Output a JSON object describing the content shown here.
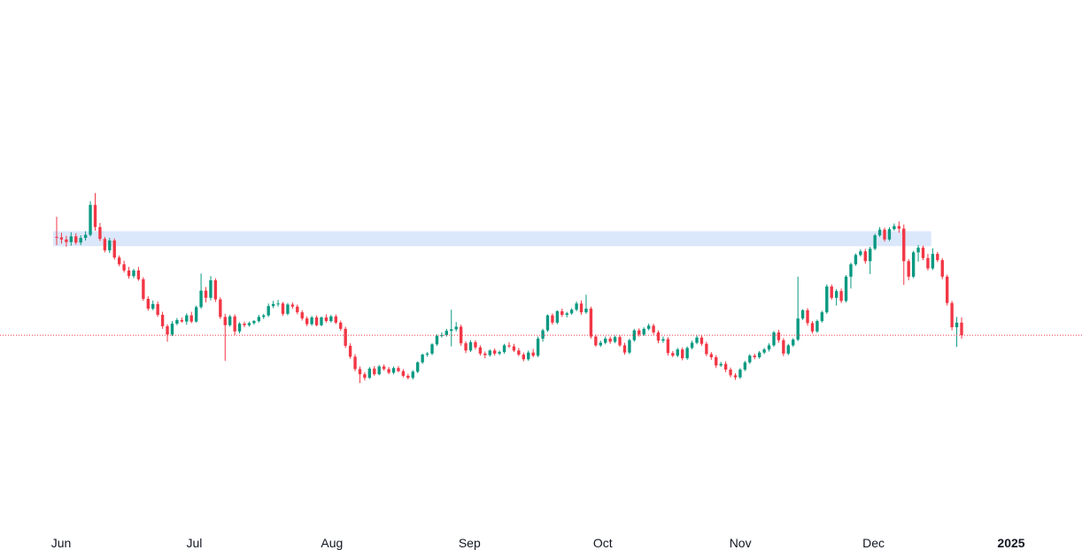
{
  "chart_data": {
    "type": "candlestick",
    "x_ticks": [
      {
        "label": "Jun",
        "date": "2024-06-01"
      },
      {
        "label": "Jul",
        "date": "2024-07-01"
      },
      {
        "label": "Aug",
        "date": "2024-08-01"
      },
      {
        "label": "Sep",
        "date": "2024-09-01"
      },
      {
        "label": "Oct",
        "date": "2024-10-01"
      },
      {
        "label": "Nov",
        "date": "2024-11-01"
      },
      {
        "label": "Dec",
        "date": "2024-12-01"
      },
      {
        "label": "2025",
        "date": "2025-01-01",
        "year": true
      }
    ],
    "xlim": [
      "2024-06-01",
      "2025-01-01"
    ],
    "ylim": [
      0,
      100
    ],
    "grid": false,
    "legend": "none",
    "up_color": "#089981",
    "down_color": "#f23645",
    "zone_color": "#dbe7fb",
    "current_price_line_color": "#f23645",
    "resistance_zone": {
      "from": "2024-06-01",
      "to": "2024-12-14",
      "low": 52.6,
      "high": 58.4
    },
    "current_price": 18.1,
    "candles_ohlc": [
      [
        56.2,
        64.0,
        53.0,
        56.0
      ],
      [
        56.0,
        57.8,
        53.6,
        55.2
      ],
      [
        55.2,
        56.6,
        52.4,
        54.2
      ],
      [
        54.2,
        58.0,
        52.8,
        56.4
      ],
      [
        56.4,
        57.6,
        53.2,
        54.0
      ],
      [
        54.0,
        56.8,
        53.0,
        55.8
      ],
      [
        55.8,
        58.4,
        54.8,
        57.0
      ],
      [
        57.0,
        70.0,
        56.4,
        68.6
      ],
      [
        68.6,
        73.2,
        58.6,
        60.0
      ],
      [
        60.0,
        61.6,
        54.6,
        55.4
      ],
      [
        55.4,
        56.2,
        50.2,
        51.0
      ],
      [
        51.0,
        55.8,
        50.0,
        54.8
      ],
      [
        54.8,
        55.6,
        47.4,
        48.2
      ],
      [
        48.2,
        49.0,
        44.8,
        45.6
      ],
      [
        45.6,
        47.0,
        42.4,
        43.2
      ],
      [
        43.2,
        44.6,
        40.0,
        41.0
      ],
      [
        41.0,
        43.8,
        40.2,
        43.2
      ],
      [
        43.2,
        44.6,
        39.2,
        39.8
      ],
      [
        39.8,
        40.6,
        31.4,
        32.2
      ],
      [
        32.2,
        33.2,
        27.6,
        28.4
      ],
      [
        28.4,
        31.6,
        27.8,
        30.2
      ],
      [
        30.2,
        31.2,
        25.2,
        26.0
      ],
      [
        26.0,
        27.2,
        20.6,
        21.6
      ],
      [
        21.6,
        22.4,
        15.6,
        18.4
      ],
      [
        18.4,
        23.6,
        17.8,
        22.6
      ],
      [
        22.6,
        24.8,
        22.0,
        24.0
      ],
      [
        24.0,
        25.0,
        23.0,
        23.4
      ],
      [
        23.4,
        26.6,
        22.2,
        25.8
      ],
      [
        25.8,
        27.2,
        22.8,
        23.4
      ],
      [
        23.4,
        29.6,
        23.0,
        29.0
      ],
      [
        29.0,
        42.0,
        28.4,
        35.4
      ],
      [
        35.4,
        36.8,
        30.8,
        32.6
      ],
      [
        32.6,
        41.0,
        31.6,
        39.4
      ],
      [
        39.4,
        40.2,
        31.0,
        32.0
      ],
      [
        32.0,
        32.8,
        24.4,
        25.2
      ],
      [
        25.2,
        26.4,
        8.2,
        22.0
      ],
      [
        22.0,
        26.0,
        21.4,
        25.4
      ],
      [
        25.4,
        26.2,
        18.2,
        19.6
      ],
      [
        19.6,
        23.2,
        18.8,
        22.6
      ],
      [
        22.6,
        23.4,
        21.2,
        22.0
      ],
      [
        22.0,
        23.4,
        21.4,
        22.8
      ],
      [
        22.8,
        24.0,
        22.2,
        23.6
      ],
      [
        23.6,
        26.0,
        23.0,
        25.2
      ],
      [
        25.2,
        26.4,
        24.4,
        25.8
      ],
      [
        25.8,
        30.4,
        25.2,
        29.4
      ],
      [
        29.4,
        31.4,
        28.6,
        30.2
      ],
      [
        30.2,
        31.8,
        29.2,
        30.4
      ],
      [
        30.4,
        31.0,
        25.6,
        26.4
      ],
      [
        26.4,
        30.6,
        25.8,
        30.0
      ],
      [
        30.0,
        30.8,
        28.4,
        29.2
      ],
      [
        29.2,
        30.0,
        26.2,
        27.0
      ],
      [
        27.0,
        27.8,
        23.8,
        24.6
      ],
      [
        24.6,
        25.4,
        21.6,
        22.4
      ],
      [
        22.4,
        25.6,
        21.8,
        25.0
      ],
      [
        25.0,
        25.8,
        21.6,
        22.0
      ],
      [
        22.0,
        25.4,
        21.6,
        25.0
      ],
      [
        25.0,
        26.2,
        23.0,
        23.6
      ],
      [
        23.6,
        26.0,
        23.0,
        25.4
      ],
      [
        25.4,
        26.2,
        22.4,
        23.0
      ],
      [
        23.0,
        23.8,
        19.8,
        20.6
      ],
      [
        20.6,
        21.4,
        13.2,
        14.0
      ],
      [
        14.0,
        15.0,
        9.0,
        9.8
      ],
      [
        9.8,
        10.8,
        4.2,
        5.0
      ],
      [
        5.0,
        6.0,
        -0.4,
        3.0
      ],
      [
        3.0,
        3.8,
        0.6,
        1.6
      ],
      [
        1.6,
        5.8,
        1.2,
        5.2
      ],
      [
        5.2,
        6.2,
        2.4,
        3.0
      ],
      [
        3.0,
        6.6,
        2.6,
        6.0
      ],
      [
        6.0,
        6.8,
        4.4,
        5.0
      ],
      [
        5.0,
        5.8,
        3.0,
        3.6
      ],
      [
        3.6,
        6.0,
        3.0,
        5.4
      ],
      [
        5.4,
        6.2,
        3.8,
        4.2
      ],
      [
        4.2,
        5.0,
        1.8,
        2.4
      ],
      [
        2.4,
        3.2,
        1.0,
        1.6
      ],
      [
        1.6,
        4.6,
        1.0,
        4.0
      ],
      [
        4.0,
        8.0,
        3.4,
        7.6
      ],
      [
        7.6,
        11.0,
        7.0,
        10.6
      ],
      [
        10.6,
        11.6,
        9.8,
        11.0
      ],
      [
        11.0,
        15.0,
        10.4,
        14.6
      ],
      [
        14.6,
        18.4,
        14.0,
        17.8
      ],
      [
        17.8,
        19.2,
        17.2,
        18.2
      ],
      [
        18.2,
        20.6,
        17.6,
        19.8
      ],
      [
        19.8,
        28.0,
        13.8,
        20.4
      ],
      [
        20.4,
        23.2,
        19.6,
        21.4
      ],
      [
        21.4,
        22.2,
        14.0,
        15.0
      ],
      [
        15.0,
        15.8,
        11.2,
        12.2
      ],
      [
        12.2,
        16.2,
        11.6,
        15.4
      ],
      [
        15.4,
        16.2,
        12.6,
        13.4
      ],
      [
        13.4,
        14.2,
        10.2,
        11.0
      ],
      [
        11.0,
        11.8,
        9.2,
        10.4
      ],
      [
        10.4,
        12.6,
        9.8,
        12.2
      ],
      [
        12.2,
        13.0,
        10.2,
        11.0
      ],
      [
        11.0,
        12.2,
        10.4,
        11.6
      ],
      [
        11.6,
        14.8,
        11.0,
        14.2
      ],
      [
        14.2,
        15.4,
        13.2,
        13.8
      ],
      [
        13.8,
        14.8,
        11.6,
        12.2
      ],
      [
        12.2,
        13.2,
        10.0,
        10.6
      ],
      [
        10.6,
        11.4,
        8.0,
        8.8
      ],
      [
        8.8,
        12.2,
        8.2,
        11.4
      ],
      [
        11.4,
        12.8,
        9.6,
        10.2
      ],
      [
        10.2,
        17.6,
        9.6,
        16.8
      ],
      [
        16.8,
        20.6,
        15.6,
        20.0
      ],
      [
        20.0,
        26.2,
        19.4,
        25.8
      ],
      [
        25.8,
        26.6,
        22.2,
        23.0
      ],
      [
        23.0,
        27.8,
        22.4,
        27.4
      ],
      [
        27.4,
        28.4,
        25.2,
        26.0
      ],
      [
        26.0,
        27.2,
        25.0,
        26.6
      ],
      [
        26.6,
        28.6,
        26.0,
        28.0
      ],
      [
        28.0,
        31.2,
        27.4,
        30.4
      ],
      [
        30.4,
        31.6,
        26.0,
        27.0
      ],
      [
        27.0,
        33.8,
        26.4,
        28.4
      ],
      [
        28.4,
        29.2,
        16.8,
        17.6
      ],
      [
        17.6,
        18.4,
        13.6,
        14.2
      ],
      [
        14.2,
        16.0,
        13.6,
        15.2
      ],
      [
        15.2,
        17.6,
        14.6,
        16.8
      ],
      [
        16.8,
        17.6,
        14.8,
        15.6
      ],
      [
        15.6,
        18.0,
        15.0,
        17.4
      ],
      [
        17.4,
        18.2,
        13.6,
        14.2
      ],
      [
        14.2,
        15.2,
        10.6,
        11.4
      ],
      [
        11.4,
        16.8,
        10.8,
        16.2
      ],
      [
        16.2,
        20.6,
        15.6,
        20.0
      ],
      [
        20.0,
        20.8,
        17.6,
        18.4
      ],
      [
        18.4,
        21.2,
        17.8,
        20.6
      ],
      [
        20.6,
        22.6,
        20.0,
        21.8
      ],
      [
        21.8,
        22.6,
        18.4,
        19.2
      ],
      [
        19.2,
        20.0,
        15.0,
        16.0
      ],
      [
        16.0,
        17.6,
        15.2,
        16.6
      ],
      [
        16.6,
        17.4,
        10.2,
        11.2
      ],
      [
        11.2,
        12.0,
        9.6,
        10.2
      ],
      [
        10.2,
        13.2,
        9.6,
        12.6
      ],
      [
        12.6,
        13.4,
        8.4,
        9.2
      ],
      [
        9.2,
        13.8,
        8.6,
        13.2
      ],
      [
        13.2,
        16.0,
        12.6,
        15.2
      ],
      [
        15.2,
        18.0,
        14.6,
        17.2
      ],
      [
        17.2,
        18.0,
        14.0,
        14.8
      ],
      [
        14.8,
        15.6,
        10.0,
        10.8
      ],
      [
        10.8,
        11.6,
        8.6,
        9.6
      ],
      [
        9.6,
        10.4,
        5.4,
        6.4
      ],
      [
        6.4,
        7.8,
        5.8,
        7.0
      ],
      [
        7.0,
        8.0,
        3.8,
        4.8
      ],
      [
        4.8,
        5.6,
        1.8,
        2.6
      ],
      [
        2.6,
        3.4,
        0.8,
        1.8
      ],
      [
        1.8,
        5.4,
        1.2,
        4.8
      ],
      [
        4.8,
        8.2,
        4.2,
        7.6
      ],
      [
        7.6,
        10.8,
        7.0,
        10.2
      ],
      [
        10.2,
        11.0,
        8.8,
        9.6
      ],
      [
        9.6,
        12.0,
        9.0,
        11.4
      ],
      [
        11.4,
        13.2,
        10.8,
        12.6
      ],
      [
        12.6,
        15.0,
        11.8,
        14.2
      ],
      [
        14.2,
        19.8,
        13.6,
        19.2
      ],
      [
        19.2,
        20.2,
        15.2,
        16.2
      ],
      [
        16.2,
        17.0,
        10.0,
        11.0
      ],
      [
        11.0,
        14.8,
        10.4,
        14.2
      ],
      [
        14.2,
        17.0,
        13.6,
        16.4
      ],
      [
        16.4,
        40.8,
        15.8,
        24.6
      ],
      [
        24.6,
        28.2,
        24.0,
        27.8
      ],
      [
        27.8,
        28.6,
        21.8,
        22.8
      ],
      [
        22.8,
        23.6,
        18.8,
        19.6
      ],
      [
        19.6,
        24.2,
        19.0,
        23.6
      ],
      [
        23.6,
        27.6,
        23.0,
        27.0
      ],
      [
        27.0,
        37.8,
        26.4,
        37.0
      ],
      [
        37.0,
        37.8,
        31.8,
        32.6
      ],
      [
        32.6,
        36.0,
        29.6,
        35.2
      ],
      [
        35.2,
        36.2,
        30.6,
        31.4
      ],
      [
        31.4,
        41.4,
        30.8,
        40.8
      ],
      [
        40.8,
        46.2,
        36.2,
        45.6
      ],
      [
        45.6,
        49.8,
        45.0,
        49.2
      ],
      [
        49.2,
        51.4,
        48.6,
        50.6
      ],
      [
        50.6,
        51.6,
        45.8,
        46.8
      ],
      [
        46.8,
        52.4,
        41.8,
        51.6
      ],
      [
        51.6,
        57.4,
        51.0,
        56.8
      ],
      [
        56.8,
        60.0,
        56.2,
        59.0
      ],
      [
        59.0,
        59.8,
        54.4,
        55.2
      ],
      [
        55.2,
        60.0,
        54.6,
        59.2
      ],
      [
        59.2,
        61.4,
        58.6,
        60.4
      ],
      [
        60.4,
        62.2,
        57.8,
        59.4
      ],
      [
        59.4,
        61.0,
        37.6,
        46.8
      ],
      [
        46.8,
        47.6,
        39.4,
        40.8
      ],
      [
        40.8,
        50.8,
        40.2,
        50.2
      ],
      [
        50.2,
        53.0,
        46.6,
        52.0
      ],
      [
        52.0,
        52.8,
        47.2,
        48.0
      ],
      [
        48.0,
        49.6,
        43.2,
        44.0
      ],
      [
        44.0,
        51.8,
        43.4,
        49.6
      ],
      [
        49.6,
        50.4,
        46.4,
        47.2
      ],
      [
        47.2,
        48.0,
        39.8,
        40.8
      ],
      [
        40.8,
        41.6,
        29.6,
        30.6
      ],
      [
        30.6,
        31.4,
        20.0,
        21.2
      ],
      [
        21.2,
        25.2,
        13.6,
        23.0
      ],
      [
        23.0,
        25.0,
        16.8,
        18.1
      ]
    ]
  }
}
